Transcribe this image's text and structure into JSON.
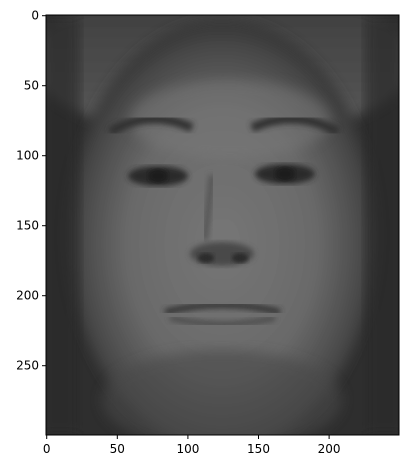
{
  "figure": {
    "image_description": "grayscale mean face image rendered with imshow",
    "image_shape": [
      300,
      250
    ],
    "x_ticks": [
      0,
      50,
      100,
      150,
      200
    ],
    "y_ticks": [
      0,
      50,
      100,
      150,
      200,
      250
    ],
    "x_tick_labels": [
      "0",
      "50",
      "100",
      "150",
      "200"
    ],
    "y_tick_labels": [
      "0",
      "50",
      "100",
      "150",
      "200",
      "250"
    ],
    "colormap": "gray",
    "colors": {
      "background": "#ffffff",
      "frame": "#000000",
      "face_mid": "#6a6a6a",
      "face_dark": "#262626"
    }
  }
}
